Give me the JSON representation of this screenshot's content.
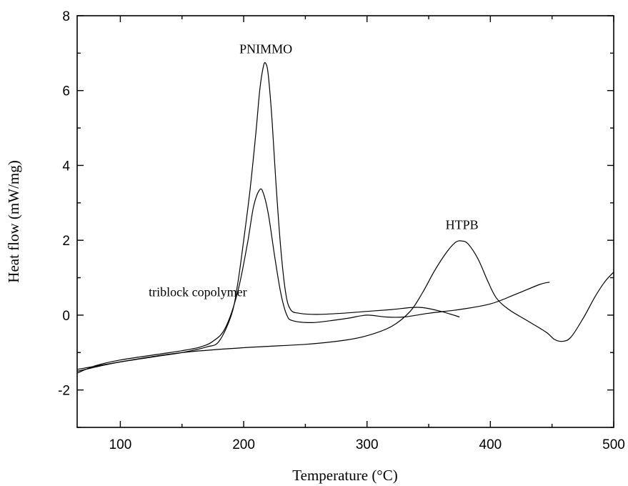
{
  "chart_data": {
    "type": "line",
    "title": "",
    "xlabel": "Temperature (°C)",
    "ylabel": "Heat flow (mW/mg)",
    "xlim": [
      65,
      500
    ],
    "ylim": [
      -3,
      8
    ],
    "x_ticks": [
      100,
      200,
      300,
      400,
      500
    ],
    "x_tick_labels": [
      "100",
      "200",
      "300",
      "400",
      "500"
    ],
    "y_ticks": [
      -2,
      0,
      2,
      4,
      6,
      8
    ],
    "y_tick_labels": [
      "-2",
      "0",
      "2",
      "4",
      "6",
      "8"
    ],
    "grid": false,
    "legend": "none",
    "annotations": [
      {
        "text": "PNIMMO",
        "x": 218,
        "y": 7.0
      },
      {
        "text": "HTPB",
        "x": 377,
        "y": 2.3
      },
      {
        "text": "triblock copolymer",
        "x": 123,
        "y": 0.5
      }
    ],
    "series": [
      {
        "points": [
          [
            65,
            -1.45
          ],
          [
            100,
            -1.25
          ],
          [
            130,
            -1.1
          ],
          [
            150,
            -1.0
          ],
          [
            170,
            -0.85
          ],
          [
            180,
            -0.7
          ],
          [
            190,
            0.0
          ],
          [
            195,
            0.8
          ],
          [
            200,
            2.0
          ],
          [
            205,
            3.3
          ],
          [
            210,
            4.9
          ],
          [
            213,
            6.0
          ],
          [
            216,
            6.65
          ],
          [
            218,
            6.72
          ],
          [
            220,
            6.4
          ],
          [
            223,
            5.2
          ],
          [
            226,
            3.6
          ],
          [
            230,
            1.8
          ],
          [
            234,
            0.6
          ],
          [
            238,
            0.15
          ],
          [
            245,
            0.05
          ],
          [
            260,
            0.02
          ],
          [
            280,
            0.05
          ],
          [
            300,
            0.1
          ],
          [
            320,
            0.15
          ],
          [
            335,
            0.2
          ],
          [
            345,
            0.2
          ],
          [
            360,
            0.1
          ],
          [
            375,
            -0.05
          ]
        ]
      },
      {
        "points": [
          [
            65,
            -1.55
          ],
          [
            80,
            -1.35
          ],
          [
            100,
            -1.2
          ],
          [
            130,
            -1.05
          ],
          [
            150,
            -0.95
          ],
          [
            165,
            -0.85
          ],
          [
            175,
            -0.7
          ],
          [
            185,
            -0.35
          ],
          [
            195,
            0.6
          ],
          [
            203,
            1.9
          ],
          [
            208,
            2.9
          ],
          [
            213,
            3.35
          ],
          [
            216,
            3.25
          ],
          [
            220,
            2.7
          ],
          [
            225,
            1.6
          ],
          [
            230,
            0.6
          ],
          [
            235,
            0.0
          ],
          [
            240,
            -0.15
          ],
          [
            255,
            -0.2
          ],
          [
            270,
            -0.15
          ],
          [
            285,
            -0.08
          ],
          [
            300,
            0.0
          ],
          [
            315,
            -0.05
          ],
          [
            330,
            -0.05
          ],
          [
            350,
            0.05
          ],
          [
            375,
            0.15
          ],
          [
            400,
            0.3
          ],
          [
            420,
            0.55
          ],
          [
            440,
            0.82
          ],
          [
            448,
            0.88
          ]
        ]
      },
      {
        "points": [
          [
            65,
            -1.5
          ],
          [
            100,
            -1.25
          ],
          [
            150,
            -1.0
          ],
          [
            200,
            -0.87
          ],
          [
            250,
            -0.78
          ],
          [
            280,
            -0.68
          ],
          [
            300,
            -0.55
          ],
          [
            320,
            -0.3
          ],
          [
            335,
            0.1
          ],
          [
            345,
            0.6
          ],
          [
            355,
            1.2
          ],
          [
            365,
            1.7
          ],
          [
            372,
            1.95
          ],
          [
            377,
            1.98
          ],
          [
            382,
            1.9
          ],
          [
            390,
            1.5
          ],
          [
            398,
            0.9
          ],
          [
            405,
            0.45
          ],
          [
            415,
            0.15
          ],
          [
            430,
            -0.15
          ],
          [
            445,
            -0.45
          ],
          [
            452,
            -0.65
          ],
          [
            458,
            -0.7
          ],
          [
            465,
            -0.6
          ],
          [
            475,
            -0.1
          ],
          [
            485,
            0.5
          ],
          [
            493,
            0.9
          ],
          [
            500,
            1.15
          ]
        ]
      }
    ]
  }
}
